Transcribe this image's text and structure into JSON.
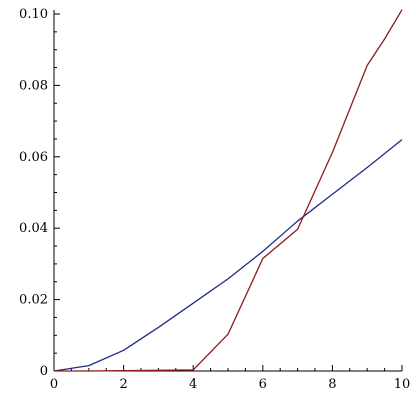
{
  "chart_data": {
    "type": "line",
    "title": "",
    "xlabel": "",
    "ylabel": "",
    "xlim": [
      0,
      10
    ],
    "ylim": [
      0,
      0.1
    ],
    "grid": false,
    "legend": "none",
    "x_ticks": [
      {
        "value": 0,
        "label": "0"
      },
      {
        "value": 2,
        "label": "2"
      },
      {
        "value": 4,
        "label": "4"
      },
      {
        "value": 6,
        "label": "6"
      },
      {
        "value": 8,
        "label": "8"
      },
      {
        "value": 10,
        "label": "10"
      }
    ],
    "y_ticks": [
      {
        "value": 0,
        "label": "0"
      },
      {
        "value": 0.02,
        "label": "0.02"
      },
      {
        "value": 0.04,
        "label": "0.04"
      },
      {
        "value": 0.06,
        "label": "0.06"
      },
      {
        "value": 0.08,
        "label": "0.08"
      },
      {
        "value": 0.1,
        "label": "0.10"
      }
    ],
    "series": [
      {
        "color": "#1f2a8a",
        "x": [
          0,
          1,
          2,
          3,
          4,
          5,
          6,
          7,
          8,
          9,
          10
        ],
        "y": [
          0,
          0.0015,
          0.0058,
          0.0122,
          0.019,
          0.0258,
          0.0335,
          0.042,
          0.0495,
          0.057,
          0.0648
        ]
      },
      {
        "color": "#8b1a1a",
        "x": [
          0,
          1,
          2,
          3,
          4,
          5,
          6,
          7,
          8,
          9,
          9.5,
          10
        ],
        "y": [
          0,
          0,
          0.0001,
          0.0002,
          0.0003,
          0.0103,
          0.0315,
          0.0397,
          0.0612,
          0.0856,
          0.093,
          0.1012
        ]
      }
    ]
  }
}
